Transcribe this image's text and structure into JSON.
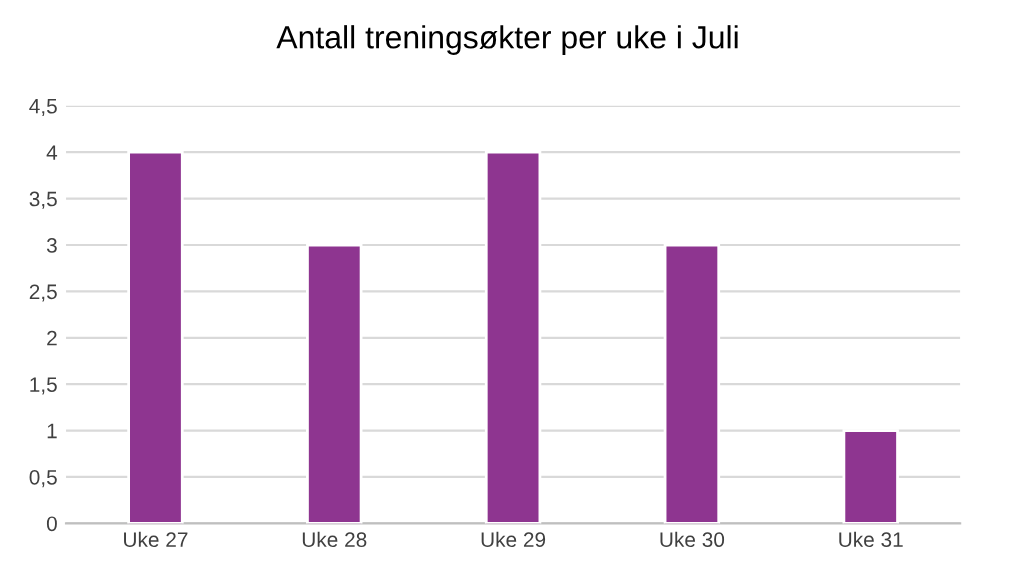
{
  "chart_data": {
    "type": "bar",
    "title": "Antall treningsøkter per uke i Juli",
    "categories": [
      "Uke 27",
      "Uke 28",
      "Uke 29",
      "Uke 30",
      "Uke 31"
    ],
    "values": [
      4,
      3,
      4,
      3,
      1
    ],
    "color": "#8e3590",
    "ylim": [
      0,
      4.5
    ],
    "yticks": [
      0,
      {
        "value": 0.5,
        "label": "0,5"
      },
      1,
      {
        "value": 1.5,
        "label": "1,5"
      },
      2,
      {
        "value": 2.5,
        "label": "2,5"
      },
      3,
      {
        "value": 3.5,
        "label": "3,5"
      },
      4,
      {
        "value": 4.5,
        "label": "4,5"
      }
    ],
    "grid": "y"
  }
}
